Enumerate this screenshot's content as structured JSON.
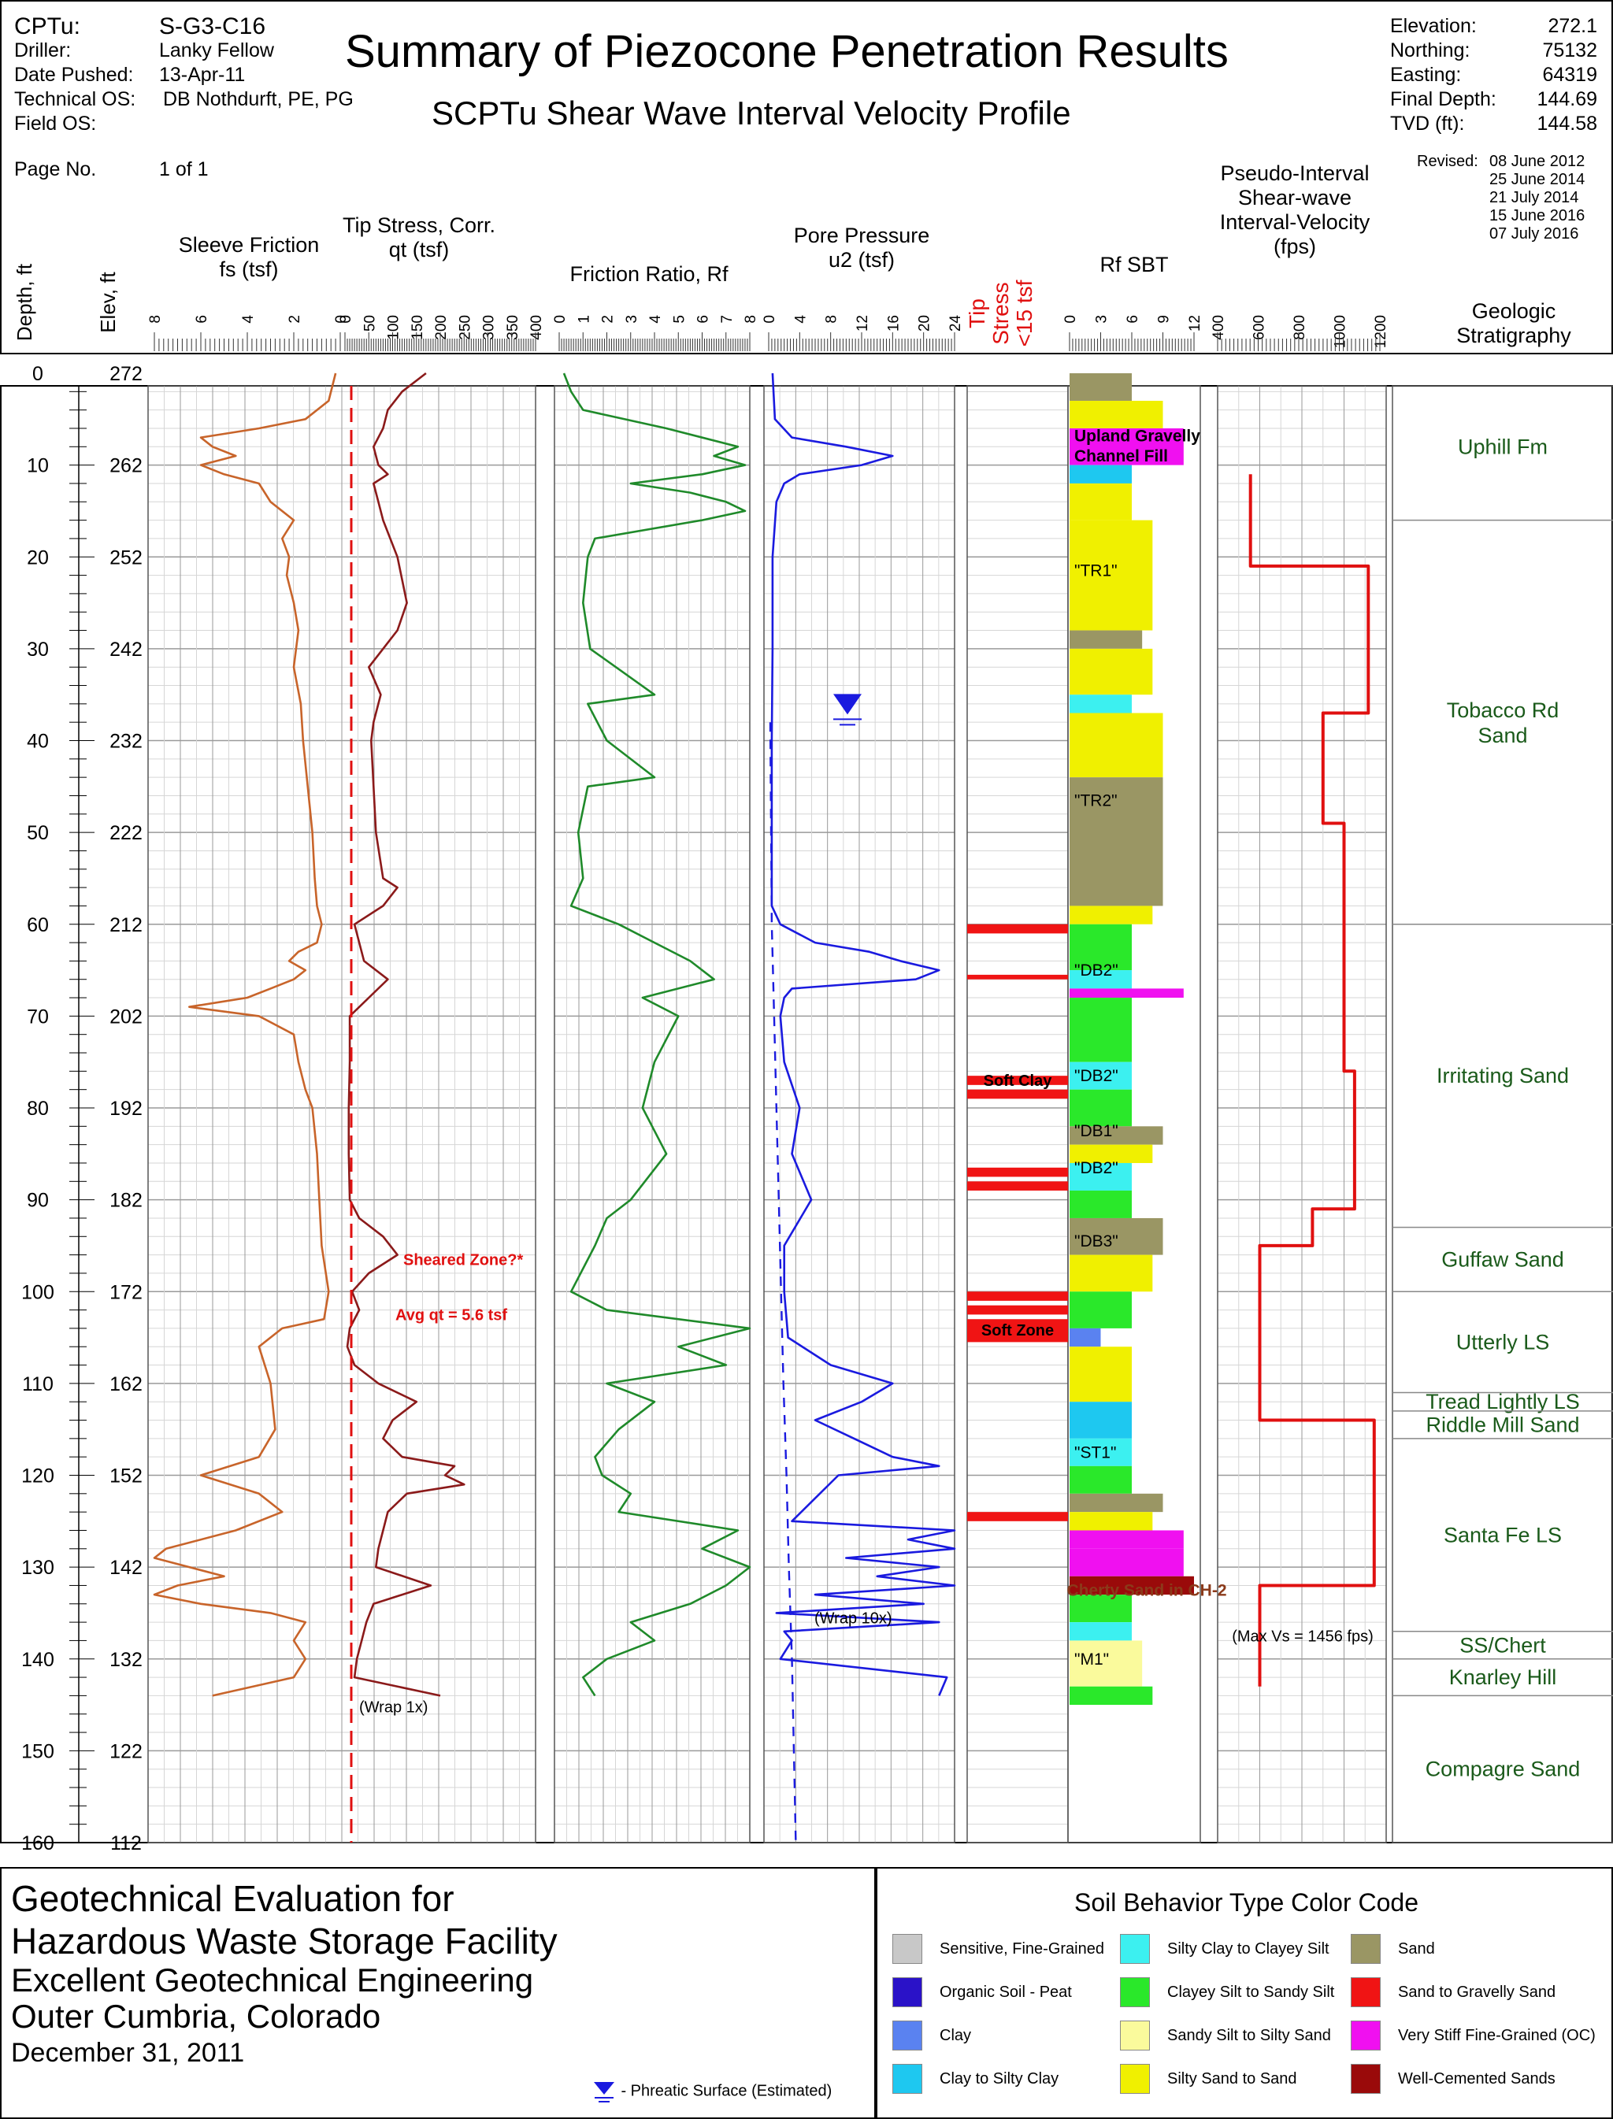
{
  "header": {
    "left_labels": [
      "CPTu:",
      "Driller:",
      "Date Pushed:",
      "Technical OS:",
      "Field OS:"
    ],
    "left_values": [
      "S-G3-C16",
      "Lanky Fellow",
      "13-Apr-11",
      "DB Nothdurft, PE, PG",
      ""
    ],
    "page_label": "Page No.",
    "page_value": "1 of 1",
    "title": "Summary of Piezocone Penetration Results",
    "subtitle": "SCPTu Shear Wave Interval Velocity Profile",
    "right_labels": [
      "Elevation:",
      "Northing:",
      "Easting:",
      "Final Depth:",
      "TVD (ft):"
    ],
    "right_values": [
      "272.1",
      "75132",
      "64319",
      "144.69",
      "144.58"
    ],
    "revised_label": "Revised:",
    "revised_dates": [
      "08 June 2012",
      "25 June 2014",
      "21 July 2014",
      "15 June 2016",
      "07 July 2016"
    ]
  },
  "chart_data": {
    "type": "line",
    "depth_axis": {
      "label": "Depth, ft",
      "range": [
        0,
        160
      ],
      "ticks": [
        "0",
        "10",
        "20",
        "30",
        "40",
        "50",
        "60",
        "70",
        "80",
        "90",
        "100",
        "110",
        "120",
        "130",
        "140",
        "150",
        "160"
      ]
    },
    "elev_axis": {
      "label": "Elev, ft",
      "ticks": [
        "272",
        "262",
        "252",
        "242",
        "232",
        "222",
        "212",
        "202",
        "192",
        "182",
        "172",
        "162",
        "152",
        "142",
        "132",
        "122",
        "112"
      ]
    },
    "tracks": [
      {
        "title_lines": [
          "Sleeve Friction",
          "fs (tsf)"
        ],
        "ticks": [
          "8",
          "6",
          "4",
          "2",
          "0"
        ],
        "range": [
          8,
          0
        ]
      },
      {
        "title_lines": [
          "Tip Stress, Corr.",
          "qt (tsf)"
        ],
        "ticks": [
          "0",
          "50",
          "100",
          "150",
          "200",
          "250",
          "300",
          "350",
          "400"
        ],
        "range": [
          0,
          400
        ]
      },
      {
        "title_lines": [
          "Friction Ratio, Rf"
        ],
        "ticks": [
          "0",
          "1",
          "2",
          "3",
          "4",
          "5",
          "6",
          "7",
          "8"
        ],
        "range": [
          0,
          8
        ]
      },
      {
        "title_lines": [
          "Pore Pressure",
          "u2 (tsf)"
        ],
        "ticks": [
          "0",
          "4",
          "8",
          "12",
          "16",
          "20",
          "24"
        ],
        "range": [
          0,
          24
        ]
      },
      {
        "title_lines": [
          "Tip",
          "Stress",
          "<15 tsf"
        ]
      },
      {
        "title_lines": [
          "Rf SBT"
        ],
        "ticks": [
          "0",
          "3",
          "6",
          "9",
          "12"
        ],
        "range": [
          0,
          12
        ]
      },
      {
        "title_lines": [
          "Pseudo-Interval",
          "Shear-wave",
          "Interval-Velocity",
          "(fps)"
        ],
        "ticks": [
          "400",
          "600",
          "800",
          "1000",
          "1200"
        ],
        "range": [
          400,
          1200
        ]
      },
      {
        "title_lines": [
          "Geologic",
          "Stratigraphy"
        ]
      }
    ],
    "series": [
      {
        "name": "fs",
        "color": "#c8642a",
        "depth": [
          0,
          3,
          5,
          6,
          7,
          8,
          9,
          10,
          11,
          12,
          14,
          16,
          18,
          20,
          22,
          25,
          28,
          32,
          36,
          40,
          45,
          50,
          55,
          58,
          60,
          62,
          63,
          64,
          65,
          66,
          67,
          68,
          69,
          70,
          72,
          75,
          78,
          80,
          85,
          90,
          95,
          100,
          103,
          104,
          106,
          110,
          115,
          118,
          120,
          122,
          124,
          126,
          128,
          129,
          130,
          131,
          132,
          133,
          134,
          135,
          136,
          138,
          140,
          142,
          144
        ],
        "values": [
          0.2,
          0.5,
          1.5,
          3.5,
          6.0,
          5.5,
          4.5,
          6.0,
          5.0,
          3.5,
          3.0,
          2.0,
          2.5,
          2.2,
          2.3,
          2.0,
          1.8,
          2.0,
          1.7,
          1.6,
          1.4,
          1.2,
          1.1,
          1.0,
          0.8,
          1.0,
          1.8,
          2.2,
          1.5,
          2.0,
          3.0,
          4.0,
          6.5,
          3.5,
          2.0,
          1.8,
          1.5,
          1.2,
          1.0,
          0.9,
          0.8,
          0.5,
          0.7,
          2.5,
          3.5,
          3.0,
          2.8,
          3.5,
          6.0,
          3.5,
          2.5,
          4.5,
          7.5,
          8.0,
          6.5,
          5.0,
          7.0,
          8.0,
          6.0,
          3.0,
          1.5,
          2.0,
          1.5,
          2.0,
          5.5
        ]
      },
      {
        "name": "qt",
        "color": "#8b1a1a",
        "depth": [
          0,
          2,
          4,
          6,
          8,
          10,
          11,
          12,
          14,
          16,
          20,
          25,
          28,
          30,
          32,
          35,
          38,
          40,
          45,
          50,
          55,
          56,
          58,
          60,
          62,
          64,
          66,
          68,
          70,
          75,
          80,
          85,
          90,
          92,
          94,
          96,
          98,
          100,
          102,
          104,
          106,
          108,
          110,
          112,
          114,
          116,
          118,
          119,
          120,
          121,
          122,
          124,
          126,
          128,
          130,
          132,
          134,
          136,
          138,
          140,
          142,
          144
        ],
        "values": [
          170,
          120,
          90,
          80,
          60,
          70,
          90,
          60,
          70,
          80,
          110,
          130,
          110,
          80,
          50,
          75,
          60,
          55,
          60,
          65,
          80,
          110,
          80,
          20,
          30,
          40,
          90,
          50,
          10,
          10,
          8,
          8,
          10,
          30,
          80,
          110,
          50,
          15,
          30,
          10,
          5,
          20,
          70,
          150,
          100,
          80,
          120,
          230,
          210,
          250,
          130,
          90,
          80,
          70,
          65,
          180,
          60,
          45,
          35,
          25,
          20,
          200
        ]
      },
      {
        "name": "Rf",
        "color": "#1f8a2a",
        "depth": [
          0,
          2,
          4,
          6,
          8,
          9,
          10,
          11,
          12,
          13,
          14,
          15,
          16,
          18,
          20,
          25,
          30,
          35,
          36,
          40,
          44,
          45,
          50,
          55,
          58,
          60,
          62,
          64,
          66,
          68,
          70,
          75,
          80,
          85,
          90,
          92,
          95,
          100,
          102,
          104,
          106,
          108,
          110,
          112,
          115,
          118,
          120,
          122,
          124,
          126,
          128,
          130,
          132,
          134,
          136,
          138,
          140,
          142,
          144
        ],
        "values": [
          0.2,
          0.5,
          1.0,
          4.5,
          7.5,
          6.5,
          7.8,
          6.0,
          3.0,
          5.5,
          7.0,
          7.8,
          6.0,
          1.5,
          1.2,
          1.0,
          1.3,
          4.0,
          1.2,
          2.0,
          4.0,
          1.2,
          0.8,
          1.0,
          0.5,
          2.5,
          4.0,
          5.5,
          6.5,
          3.5,
          5.0,
          4.0,
          3.5,
          4.5,
          3.0,
          2.0,
          1.5,
          0.5,
          2.0,
          8.0,
          5.0,
          7.0,
          2.0,
          4.0,
          2.5,
          1.5,
          1.8,
          3.0,
          2.5,
          7.5,
          6.0,
          8.0,
          7.0,
          5.5,
          3.0,
          4.0,
          2.0,
          1.0,
          1.5
        ]
      },
      {
        "name": "u2",
        "color": "#1a1adf",
        "depth": [
          0,
          5,
          7,
          8,
          9,
          10,
          11,
          12,
          14,
          20,
          30,
          40,
          50,
          58,
          60,
          62,
          63,
          64,
          65,
          66,
          67,
          68,
          70,
          75,
          80,
          85,
          90,
          95,
          100,
          105,
          108,
          110,
          112,
          114,
          116,
          118,
          119,
          120,
          125,
          126,
          127,
          128,
          129,
          130,
          131,
          132,
          133,
          134,
          135,
          136,
          137,
          138,
          140,
          142,
          144
        ],
        "values": [
          0.5,
          0.8,
          3.0,
          10.0,
          16.0,
          12.0,
          4.0,
          2.0,
          1.0,
          0.5,
          0.5,
          0.4,
          0.4,
          0.4,
          1.5,
          6.0,
          13.0,
          17.0,
          22.0,
          19.0,
          3.0,
          2.0,
          1.5,
          2.0,
          4.0,
          3.0,
          5.5,
          2.0,
          2.0,
          2.5,
          8.0,
          16.0,
          12.0,
          6.0,
          11.0,
          16.0,
          22.0,
          9.0,
          3.0,
          24.0,
          18.0,
          24.0,
          10.0,
          22.0,
          14.0,
          24.0,
          6.0,
          20.0,
          1.0,
          22.0,
          2.0,
          3.0,
          1.5,
          23.0,
          22.0
        ]
      },
      {
        "name": "Vs",
        "color": "#e01010",
        "depth": [
          11,
          21,
          21,
          37,
          37,
          49,
          49,
          61.5,
          61.5,
          76,
          76,
          91,
          91,
          95,
          95,
          114,
          114,
          132,
          132,
          143
        ],
        "values": [
          556,
          556,
          1115,
          1115,
          900,
          900,
          1000,
          1000,
          1000,
          1000,
          1050,
          1050,
          850,
          850,
          600,
          600,
          1143,
          1143,
          600,
          600
        ]
      }
    ],
    "low_tip_stress_zones": [
      [
        60,
        61
      ],
      [
        65.5,
        66
      ],
      [
        76.5,
        77.5
      ],
      [
        78,
        79
      ],
      [
        86.5,
        87.5
      ],
      [
        88,
        89
      ],
      [
        100,
        101
      ],
      [
        101.5,
        102.5
      ],
      [
        103,
        105.5
      ],
      [
        124,
        125
      ]
    ],
    "stratigraphy": [
      {
        "name": "Uphill Fm",
        "top": 0,
        "bottom": 16
      },
      {
        "name": "Tobacco Rd Sand",
        "top": 16,
        "bottom": 60
      },
      {
        "name": "Irritating Sand",
        "top": 60,
        "bottom": 93
      },
      {
        "name": "Guffaw Sand",
        "top": 93,
        "bottom": 100
      },
      {
        "name": "Utterly LS",
        "top": 100,
        "bottom": 111
      },
      {
        "name": "Tread Lightly LS",
        "top": 111,
        "bottom": 113
      },
      {
        "name": "Riddle Mill Sand",
        "top": 113,
        "bottom": 116
      },
      {
        "name": "Santa Fe LS",
        "top": 116,
        "bottom": 137
      },
      {
        "name": "SS/Chert",
        "top": 137,
        "bottom": 140
      },
      {
        "name": "Knarley Hill",
        "top": 140,
        "bottom": 144
      },
      {
        "name": "Compagre Sand",
        "top": 144,
        "bottom": 160
      }
    ],
    "sbt_zone_labels": [
      {
        "text": "Upland Gravelly",
        "depth": 6.8
      },
      {
        "text": "Channel Fill",
        "depth": 9
      },
      {
        "text": "\"TR1\"",
        "depth": 21.5
      },
      {
        "text": "\"TR2\"",
        "depth": 46.5
      },
      {
        "text": "\"DB2\"",
        "depth": 65
      },
      {
        "text": "\"DB2\"",
        "depth": 76.5
      },
      {
        "text": "\"DB1\"",
        "depth": 82.5
      },
      {
        "text": "\"DB2\"",
        "depth": 86.5
      },
      {
        "text": "\"DB3\"",
        "depth": 94.5
      },
      {
        "text": "\"ST1\"",
        "depth": 117.5
      },
      {
        "text": "Cherty Sand in CH-2",
        "depth": 132.5
      },
      {
        "text": "\"M1\"",
        "depth": 140
      }
    ],
    "annotations": [
      {
        "text": "Sheared Zone?*",
        "depth": 96.5
      },
      {
        "text": "Avg qt = 5.6 tsf",
        "depth": 102.5
      },
      {
        "text": "Soft Clay",
        "depth": 77
      },
      {
        "text": "Soft Zone",
        "depth": 104.2
      },
      {
        "text": "(Wrap 1x)",
        "depth": 145.2
      },
      {
        "text": "(Wrap 10x)",
        "depth": 135.5
      },
      {
        "text": "(Max Vs = 1456 fps)",
        "depth": 137.5
      }
    ],
    "phreatic_surface_depth": 37.5,
    "phreatic_line": {
      "depth": [
        38,
        60,
        70,
        80,
        90,
        100,
        110,
        120,
        130,
        140,
        160
      ],
      "values": [
        0.2,
        0.4,
        0.7,
        1.0,
        1.3,
        1.6,
        1.9,
        2.3,
        2.6,
        3.0,
        3.5
      ]
    }
  },
  "footer": {
    "lines": [
      "Geotechnical Evaluation for",
      "Hazardous Waste Storage Facility",
      "Excellent Geotechnical Engineering",
      "Outer Cumbria, Colorado",
      "December 31, 2011"
    ],
    "phreatic_label": "- Phreatic Surface (Estimated)"
  },
  "legend": {
    "title": "Soil Behavior Type Color Code",
    "items": [
      {
        "label": "Sensitive, Fine-Grained",
        "color": "#c8c8c8"
      },
      {
        "label": "Organic Soil - Peat",
        "color": "#2a12c8"
      },
      {
        "label": "Clay",
        "color": "#5a82f0"
      },
      {
        "label": "Clay to Silty Clay",
        "color": "#1ec8f0"
      },
      {
        "label": "Silty Clay to Clayey Silt",
        "color": "#3cf0f0"
      },
      {
        "label": "Clayey Silt to Sandy Silt",
        "color": "#2ae82a"
      },
      {
        "label": "Sandy Silt to Silty Sand",
        "color": "#fafa9c"
      },
      {
        "label": "Silty Sand to Sand",
        "color": "#f0f000"
      },
      {
        "label": "Sand",
        "color": "#9a9664"
      },
      {
        "label": "Sand to Gravelly Sand",
        "color": "#f01414"
      },
      {
        "label": "Very Stiff Fine-Grained (OC)",
        "color": "#f010f0"
      },
      {
        "label": "Well-Cemented Sands",
        "color": "#9a0a0a"
      }
    ]
  }
}
